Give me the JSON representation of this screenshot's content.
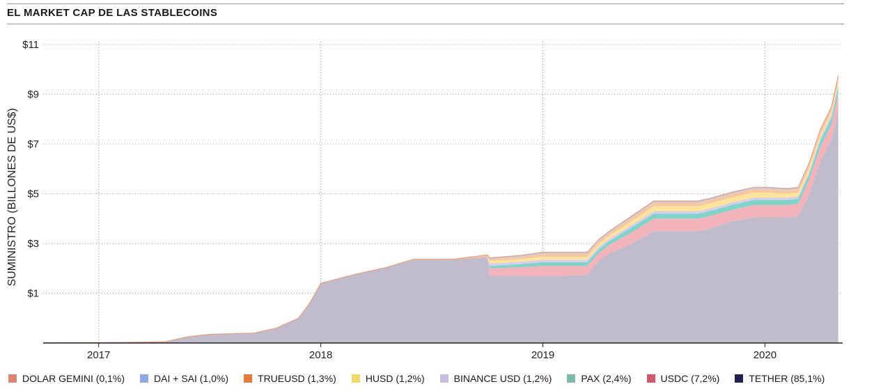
{
  "title": "EL MARKET CAP DE LAS STABLECOINS",
  "chart_data": {
    "type": "area",
    "stacked": true,
    "title": "EL MARKET CAP DE LAS STABLECOINS",
    "ylabel": "SUMINISTRO (BILLONES DE US$)",
    "xlabel": "",
    "xlim": [
      2016.75,
      2020.35
    ],
    "ylim": [
      -1,
      11
    ],
    "yticks": [
      1,
      3,
      5,
      7,
      9,
      11
    ],
    "ytick_labels": [
      "$1",
      "$3",
      "$5",
      "$7",
      "$9",
      "$11"
    ],
    "xticks": [
      2017,
      2018,
      2019,
      2020
    ],
    "xtick_labels": [
      "2017",
      "2018",
      "2019",
      "2020"
    ],
    "grid": "dotted",
    "legend_position": "bottom",
    "x": [
      2016.75,
      2017.1,
      2017.3,
      2017.4,
      2017.5,
      2017.7,
      2017.8,
      2017.9,
      2017.95,
      2018.0,
      2018.15,
      2018.3,
      2018.42,
      2018.6,
      2018.75,
      2018.76,
      2018.9,
      2019.0,
      2019.1,
      2019.2,
      2019.25,
      2019.3,
      2019.4,
      2019.5,
      2019.6,
      2019.7,
      2019.75,
      2019.85,
      2019.95,
      2020.0,
      2020.1,
      2020.15,
      2020.2,
      2020.25,
      2020.3,
      2020.33
    ],
    "series": [
      {
        "name": "TETHER (85,1%)",
        "color": "#c0bccc",
        "values": [
          -1,
          -0.98,
          -0.95,
          -0.75,
          -0.65,
          -0.6,
          -0.4,
          0.0,
          0.6,
          1.4,
          1.75,
          2.05,
          2.35,
          2.35,
          2.45,
          1.7,
          1.7,
          1.7,
          1.7,
          1.75,
          2.3,
          2.6,
          3.0,
          3.5,
          3.5,
          3.5,
          3.6,
          3.9,
          4.05,
          4.05,
          4.05,
          4.1,
          5.0,
          6.3,
          7.2,
          8.4
        ]
      },
      {
        "name": "USDC (7,2%)",
        "color": "#f2b3bb",
        "values": [
          0,
          0,
          0,
          0,
          0,
          0,
          0,
          0,
          0,
          0,
          0,
          0,
          0.02,
          0.02,
          0.04,
          0.3,
          0.35,
          0.4,
          0.4,
          0.35,
          0.3,
          0.35,
          0.45,
          0.5,
          0.5,
          0.5,
          0.5,
          0.45,
          0.5,
          0.5,
          0.5,
          0.5,
          0.6,
          0.6,
          0.6,
          0.65
        ]
      },
      {
        "name": "PAX (2,4%)",
        "color": "#7fd3c8",
        "values": [
          0,
          0,
          0,
          0,
          0,
          0,
          0,
          0,
          0,
          0,
          0,
          0,
          0,
          0,
          0,
          0.1,
          0.12,
          0.15,
          0.15,
          0.15,
          0.15,
          0.15,
          0.2,
          0.2,
          0.2,
          0.2,
          0.2,
          0.2,
          0.2,
          0.2,
          0.2,
          0.2,
          0.2,
          0.25,
          0.25,
          0.25
        ]
      },
      {
        "name": "BINANCE USD (1,2%)",
        "color": "#d8cde8",
        "values": [
          0,
          0,
          0,
          0,
          0,
          0,
          0,
          0,
          0,
          0,
          0,
          0,
          0,
          0,
          0,
          0.1,
          0.1,
          0.1,
          0.1,
          0.1,
          0.1,
          0.1,
          0.1,
          0.1,
          0.1,
          0.1,
          0.1,
          0.1,
          0.1,
          0.1,
          0.1,
          0.1,
          0.1,
          0.12,
          0.12,
          0.12
        ]
      },
      {
        "name": "HUSD (1,2%)",
        "color": "#fde49a",
        "values": [
          0,
          0,
          0,
          0,
          0,
          0,
          0,
          0,
          0,
          0,
          0,
          0,
          0,
          0,
          0,
          0.1,
          0.1,
          0.12,
          0.12,
          0.12,
          0.12,
          0.12,
          0.15,
          0.2,
          0.2,
          0.2,
          0.2,
          0.2,
          0.2,
          0.2,
          0.15,
          0.15,
          0.15,
          0.12,
          0.12,
          0.12
        ]
      },
      {
        "name": "TRUEUSD (1,3%)",
        "color": "#f5c8a0",
        "values": [
          0,
          0,
          0,
          0,
          0,
          0,
          0,
          0,
          0,
          0,
          0,
          0,
          0,
          0,
          0.05,
          0.08,
          0.1,
          0.12,
          0.12,
          0.12,
          0.12,
          0.12,
          0.15,
          0.15,
          0.15,
          0.15,
          0.15,
          0.15,
          0.15,
          0.15,
          0.15,
          0.15,
          0.15,
          0.15,
          0.15,
          0.15
        ]
      },
      {
        "name": "DAI + SAI (1,0%)",
        "color": "#b9c9ef",
        "values": [
          0,
          0,
          0,
          0,
          0,
          0,
          0,
          0,
          0,
          0,
          0,
          0,
          0,
          0,
          0,
          0.03,
          0.04,
          0.05,
          0.05,
          0.05,
          0.05,
          0.05,
          0.05,
          0.05,
          0.05,
          0.05,
          0.05,
          0.05,
          0.05,
          0.05,
          0.05,
          0.05,
          0.05,
          0.05,
          0.05,
          0.05
        ]
      },
      {
        "name": "DOLAR GEMINI (0,1%)",
        "color": "#e9a08f",
        "values": [
          0,
          0,
          0,
          0,
          0,
          0,
          0,
          0,
          0,
          0,
          0,
          0,
          0,
          0,
          0,
          0.01,
          0.01,
          0.01,
          0.01,
          0.01,
          0.01,
          0.01,
          0.01,
          0.01,
          0.01,
          0.01,
          0.01,
          0.01,
          0.01,
          0.01,
          0.01,
          0.01,
          0.01,
          0.01,
          0.01,
          0.01
        ]
      }
    ]
  },
  "legend": [
    {
      "label": "DOLAR GEMINI (0,1%)",
      "color": "#d98778"
    },
    {
      "label": "DAI + SAI (1,0%)",
      "color": "#8fa8e6"
    },
    {
      "label": "TRUEUSD (1,3%)",
      "color": "#e07b3c"
    },
    {
      "label": "HUSD (1,2%)",
      "color": "#f0da6e"
    },
    {
      "label": "BINANCE USD (1,2%)",
      "color": "#c8bde3"
    },
    {
      "label": "PAX (2,4%)",
      "color": "#7fb8a8"
    },
    {
      "label": "USDC (7,2%)",
      "color": "#d05a6b"
    },
    {
      "label": "TETHER (85,1%)",
      "color": "#222050"
    }
  ]
}
